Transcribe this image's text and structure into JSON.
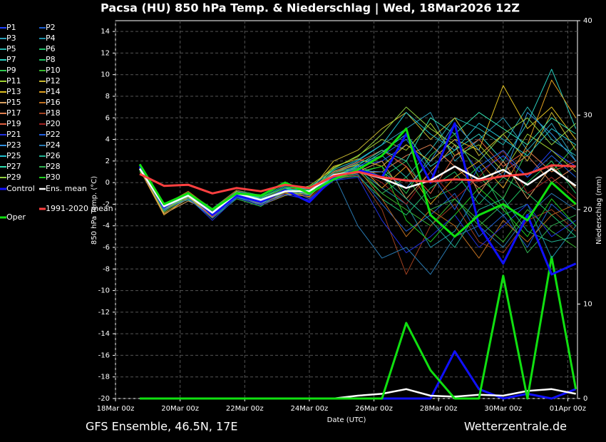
{
  "chart_data": {
    "type": "line",
    "title": "Pacsa  (HU)  850 hPa Temp. & Niederschlag | Wed, 18Mar2026 12Z",
    "subtitle": "GFS Ensemble, 46.5N, 17E",
    "source": "Wetterzentrale.de",
    "x_label": "Date (UTC)",
    "y_label": "850 hPa Temp. (°C)",
    "y2_label": "Niederschlag (mm)",
    "x": [
      0.75,
      1.5,
      2.25,
      3,
      3.75,
      4.5,
      5.25,
      6,
      6.75,
      7.5,
      8.25,
      9,
      9.75,
      10.5,
      11.25,
      12,
      12.75,
      13.5,
      14.25
    ],
    "xlim": [
      0,
      14.3
    ],
    "xticks": [
      {
        "value": 0,
        "label": "18Mar 00z"
      },
      {
        "value": 2,
        "label": "20Mar 00z"
      },
      {
        "value": 4,
        "label": "22Mar 00z"
      },
      {
        "value": 6,
        "label": "24Mar 00z"
      },
      {
        "value": 8,
        "label": "26Mar 00z"
      },
      {
        "value": 10,
        "label": "28Mar 00z"
      },
      {
        "value": 12,
        "label": "30Mar 00z"
      },
      {
        "value": 14,
        "label": "01Apr 00z"
      }
    ],
    "ylim": [
      -20,
      15
    ],
    "yticks": [
      -20,
      -18,
      -16,
      -14,
      -12,
      -10,
      -8,
      -6,
      -4,
      -2,
      0,
      2,
      4,
      6,
      8,
      10,
      12,
      14
    ],
    "y2lim": [
      0,
      40
    ],
    "y2ticks": [
      0,
      10,
      20,
      30,
      40
    ],
    "grid": true,
    "series": [
      {
        "name": "P1",
        "color": "#2040ff",
        "values": [
          1.2,
          -2.5,
          -1.5,
          -3.2,
          -1.2,
          -2.0,
          -1.0,
          -1.2,
          0.5,
          1.5,
          2.0,
          3.5,
          2.0,
          4.0,
          1.0,
          2.5,
          0.5,
          3.0,
          1.5
        ]
      },
      {
        "name": "P2",
        "color": "#1f5fd0",
        "values": [
          1.4,
          -2.0,
          -1.0,
          -2.6,
          -0.8,
          -1.4,
          -0.5,
          -1.5,
          0.2,
          0.8,
          -2.0,
          -4.5,
          -3.0,
          -1.0,
          -5.0,
          -3.0,
          -6.0,
          -2.0,
          -4.0
        ]
      },
      {
        "name": "P3",
        "color": "#2a9fb8",
        "values": [
          1.6,
          -2.6,
          -1.3,
          -2.9,
          -1.1,
          -1.8,
          -1.0,
          -0.6,
          1.0,
          2.0,
          3.5,
          5.0,
          6.5,
          2.0,
          4.0,
          6.0,
          3.0,
          5.5,
          2.0
        ]
      },
      {
        "name": "P4",
        "color": "#1e8fa8",
        "values": [
          1.1,
          -2.1,
          -1.4,
          -2.5,
          -1.3,
          -1.5,
          -0.6,
          -0.9,
          0.8,
          1.2,
          -0.5,
          -2.0,
          -6.0,
          -4.5,
          -1.0,
          -3.0,
          -2.0,
          -7.0,
          -4.0
        ]
      },
      {
        "name": "P5",
        "color": "#25b5b0",
        "values": [
          1.5,
          -2.4,
          -1.1,
          -3.1,
          -0.9,
          -1.7,
          -0.9,
          -0.7,
          0.9,
          1.8,
          2.5,
          0.5,
          3.0,
          6.0,
          5.0,
          3.5,
          7.0,
          4.0,
          2.5
        ]
      },
      {
        "name": "P6",
        "color": "#1fbf6a",
        "values": [
          1.3,
          -2.3,
          -1.2,
          -2.7,
          -1.0,
          -1.3,
          -0.4,
          -0.5,
          0.4,
          0.6,
          -1.5,
          -3.0,
          -0.5,
          1.0,
          -2.0,
          0.5,
          -1.0,
          -3.0,
          -5.0
        ]
      },
      {
        "name": "P7",
        "color": "#2ad0c0",
        "values": [
          1.4,
          -2.2,
          -1.6,
          -3.0,
          -1.4,
          -1.9,
          -1.1,
          -1.0,
          0.6,
          1.4,
          2.8,
          4.5,
          1.5,
          3.0,
          4.5,
          2.0,
          5.5,
          10.5,
          5.0
        ]
      },
      {
        "name": "P8",
        "color": "#20c060",
        "values": [
          1.2,
          -2.0,
          -0.9,
          -2.4,
          -0.7,
          -1.2,
          -0.3,
          -0.4,
          1.1,
          1.6,
          0.5,
          2.0,
          -1.5,
          -0.5,
          1.5,
          -2.5,
          0.0,
          2.0,
          -1.0
        ]
      },
      {
        "name": "P9",
        "color": "#30c850",
        "values": [
          1.6,
          -2.7,
          -1.0,
          -3.3,
          -1.5,
          -2.2,
          -0.7,
          -1.1,
          0.3,
          0.9,
          1.5,
          -1.0,
          2.5,
          4.5,
          0.5,
          -1.5,
          3.0,
          1.0,
          3.5
        ]
      },
      {
        "name": "P10",
        "color": "#38b830",
        "values": [
          1.0,
          -1.9,
          -1.3,
          -2.6,
          -0.8,
          -1.5,
          -0.6,
          -0.8,
          0.7,
          1.1,
          -1.0,
          -2.5,
          -4.0,
          -1.5,
          -3.5,
          -5.5,
          -2.5,
          -4.5,
          -6.0
        ]
      },
      {
        "name": "P11",
        "color": "#a0d030",
        "values": [
          1.5,
          -2.5,
          -1.2,
          -2.9,
          -1.0,
          -1.6,
          -0.9,
          -0.3,
          1.3,
          2.5,
          4.0,
          3.0,
          5.5,
          2.5,
          3.5,
          1.0,
          4.5,
          3.0,
          1.0
        ]
      },
      {
        "name": "P12",
        "color": "#c8b830",
        "values": [
          1.3,
          -2.8,
          -1.5,
          -3.0,
          -1.2,
          -2.1,
          -1.2,
          -0.9,
          2.0,
          3.0,
          5.0,
          6.5,
          4.0,
          6.0,
          2.5,
          4.5,
          2.0,
          6.5,
          3.0
        ]
      },
      {
        "name": "P13",
        "color": "#e0c020",
        "values": [
          1.4,
          -2.4,
          -1.1,
          -2.8,
          -0.9,
          -1.8,
          -0.8,
          -0.6,
          1.5,
          2.2,
          1.5,
          3.5,
          2.0,
          4.0,
          3.0,
          9.0,
          5.0,
          7.0,
          4.0
        ]
      },
      {
        "name": "P14",
        "color": "#e0a020",
        "values": [
          1.2,
          -3.0,
          -1.4,
          -3.1,
          -1.1,
          -2.0,
          -1.0,
          -1.3,
          0.9,
          1.7,
          -0.5,
          1.5,
          -2.0,
          0.5,
          2.0,
          -0.5,
          3.5,
          9.5,
          6.0
        ]
      },
      {
        "name": "P15",
        "color": "#d8a060",
        "values": [
          1.3,
          -2.9,
          -1.7,
          -2.7,
          -1.3,
          -1.9,
          -0.7,
          -1.0,
          0.5,
          1.0,
          2.0,
          -1.5,
          1.0,
          3.5,
          -1.0,
          2.0,
          -1.5,
          1.5,
          -0.5
        ]
      },
      {
        "name": "P16",
        "color": "#c07020",
        "values": [
          1.5,
          -2.1,
          -0.8,
          -2.5,
          -0.7,
          -1.4,
          -0.5,
          -0.6,
          0.8,
          1.3,
          -1.5,
          -5.0,
          -2.5,
          -4.0,
          -7.0,
          -3.5,
          -5.5,
          -3.0,
          -2.0
        ]
      },
      {
        "name": "P17",
        "color": "#e08050",
        "values": [
          1.1,
          -2.3,
          -1.2,
          -3.0,
          -1.0,
          -1.7,
          -0.9,
          -0.8,
          0.6,
          0.9,
          1.0,
          2.5,
          3.5,
          1.5,
          -0.5,
          1.0,
          2.5,
          0.0,
          1.5
        ]
      },
      {
        "name": "P18",
        "color": "#a04020",
        "values": [
          1.6,
          -2.2,
          -1.0,
          -2.8,
          -1.2,
          -1.5,
          -0.6,
          -1.4,
          0.4,
          0.7,
          -2.5,
          -8.5,
          -4.0,
          -2.0,
          -5.5,
          -6.5,
          -3.5,
          -2.5,
          -4.5
        ]
      },
      {
        "name": "P19",
        "color": "#e06040",
        "values": [
          1.3,
          -2.6,
          -1.3,
          -3.2,
          -0.9,
          -1.6,
          -0.8,
          -0.9,
          1.0,
          1.9,
          3.0,
          1.5,
          -1.0,
          2.5,
          4.0,
          1.5,
          3.0,
          1.0,
          2.0
        ]
      },
      {
        "name": "P20",
        "color": "#a02020",
        "values": [
          1.4,
          -2.0,
          -1.1,
          -2.6,
          -1.1,
          -1.8,
          -1.0,
          -0.7,
          0.7,
          1.2,
          0.0,
          -2.0,
          1.0,
          -1.5,
          0.5,
          3.0,
          -1.0,
          0.5,
          -1.5
        ]
      },
      {
        "name": "P21",
        "color": "#2030e0",
        "values": [
          1.2,
          -2.4,
          -1.4,
          -3.5,
          -1.4,
          -2.1,
          -1.1,
          -1.6,
          0.2,
          0.5,
          -3.5,
          -6.5,
          -5.0,
          -3.0,
          -6.0,
          -4.0,
          -2.0,
          -5.0,
          -3.5
        ]
      },
      {
        "name": "P22",
        "color": "#2060e0",
        "values": [
          1.5,
          -2.3,
          -1.0,
          -2.7,
          -0.8,
          -1.3,
          -0.4,
          -1.2,
          0.9,
          1.5,
          2.5,
          4.0,
          1.0,
          -2.5,
          1.5,
          3.0,
          0.5,
          2.5,
          0.5
        ]
      },
      {
        "name": "P23",
        "color": "#3090e0",
        "values": [
          1.3,
          -2.5,
          -1.2,
          -2.9,
          -1.0,
          -1.7,
          -0.8,
          -0.8,
          0.6,
          1.1,
          1.0,
          -0.5,
          2.0,
          5.5,
          3.0,
          0.5,
          6.5,
          4.5,
          2.0
        ]
      },
      {
        "name": "P24",
        "color": "#2878b0",
        "values": [
          1.4,
          -2.6,
          -1.5,
          -3.3,
          -1.3,
          -2.0,
          -0.9,
          -0.9,
          0.8,
          -4.0,
          -7.0,
          -6.0,
          -8.5,
          -5.0,
          -4.0,
          -6.0,
          -3.0,
          -1.0,
          -2.5
        ]
      },
      {
        "name": "P25",
        "color": "#20c0d0",
        "values": [
          1.6,
          -2.2,
          -1.1,
          -2.8,
          -0.9,
          -1.5,
          -0.7,
          -0.5,
          1.2,
          2.1,
          3.5,
          6.5,
          4.5,
          3.0,
          5.5,
          4.0,
          2.5,
          5.0,
          3.5
        ]
      },
      {
        "name": "P26",
        "color": "#20b090",
        "values": [
          1.2,
          -2.3,
          -1.3,
          -2.6,
          -1.1,
          -1.6,
          -0.6,
          -0.7,
          0.7,
          1.3,
          0.5,
          -1.5,
          -3.5,
          -6.0,
          -2.5,
          -1.5,
          -4.5,
          -5.5,
          -5.0
        ]
      },
      {
        "name": "P27",
        "color": "#30e0b0",
        "values": [
          1.3,
          -2.1,
          -1.0,
          -3.0,
          -1.0,
          -1.4,
          -0.5,
          -1.0,
          0.5,
          1.6,
          3.0,
          2.0,
          6.0,
          4.5,
          6.5,
          5.0,
          3.5,
          6.0,
          4.5
        ]
      },
      {
        "name": "P28",
        "color": "#30b050",
        "values": [
          1.5,
          -2.7,
          -1.2,
          -2.7,
          -1.2,
          -1.8,
          -0.8,
          -0.6,
          0.9,
          1.4,
          -1.0,
          0.5,
          -2.5,
          -1.5,
          -4.0,
          -2.0,
          -6.5,
          -4.0,
          -3.0
        ]
      },
      {
        "name": "P29",
        "color": "#90d040",
        "values": [
          1.4,
          -2.4,
          -1.4,
          -2.9,
          -0.8,
          -1.7,
          -0.9,
          -1.1,
          1.4,
          2.4,
          4.5,
          7.0,
          5.0,
          3.5,
          2.0,
          4.5,
          6.0,
          3.5,
          5.5
        ]
      },
      {
        "name": "P30",
        "color": "#20d020",
        "values": [
          1.1,
          -2.0,
          -0.9,
          -2.5,
          -1.0,
          -1.3,
          -0.5,
          -0.4,
          0.6,
          1.0,
          1.5,
          -3.5,
          -5.5,
          -3.0,
          -0.5,
          -2.5,
          -5.0,
          -1.5,
          -4.0
        ]
      },
      {
        "name": "Control",
        "color": "#1010ff",
        "values": [
          1.5,
          -2.3,
          -1.0,
          -3.0,
          -1.2,
          -1.8,
          -0.7,
          -1.8,
          0.5,
          1.2,
          0.5,
          4.5,
          0,
          5.5,
          -4,
          -7.5,
          -3,
          -8.5,
          -7.5
        ],
        "precip_values": [
          0,
          0,
          0,
          0,
          0,
          0,
          0,
          0,
          0,
          0,
          0,
          0,
          0,
          5,
          1,
          0,
          0.5,
          0,
          1
        ]
      },
      {
        "name": "Ens. mean",
        "color": "#ffffff",
        "values": [
          1.3,
          -2.2,
          -1.2,
          -2.8,
          -1.0,
          -1.6,
          -0.8,
          -0.8,
          0.7,
          1.0,
          0.4,
          -0.5,
          0.2,
          1.5,
          0.3,
          1.2,
          -0.2,
          1.3,
          -0.3
        ],
        "precip_values": [
          0,
          0,
          0,
          0,
          0,
          0,
          0,
          0,
          0,
          0.3,
          0.5,
          1,
          0.3,
          0.2,
          0.4,
          0.3,
          0.8,
          1,
          0.5
        ]
      },
      {
        "name": "Oper",
        "color": "#10e010",
        "values": [
          1.7,
          -2.0,
          -1.0,
          -2.5,
          -1.0,
          -1.2,
          0,
          -1.0,
          0.3,
          1.2,
          2.5,
          5,
          -3,
          -5,
          -3,
          -2,
          -3.5,
          0,
          -2
        ],
        "precip_values": [
          0,
          0,
          0,
          0,
          0,
          0,
          0,
          0,
          0,
          0,
          0,
          8,
          3,
          0,
          0,
          13,
          0,
          15,
          1
        ]
      },
      {
        "name": "1991-2020 mean",
        "color": "#ff4040",
        "values": [
          0.8,
          -0.3,
          -0.2,
          -1.0,
          -0.5,
          -0.8,
          -0.2,
          -0.5,
          0.6,
          1.0,
          0.5,
          0.2,
          0.1,
          0.3,
          0.2,
          0.6,
          0.8,
          1.6,
          1.5
        ]
      }
    ]
  }
}
